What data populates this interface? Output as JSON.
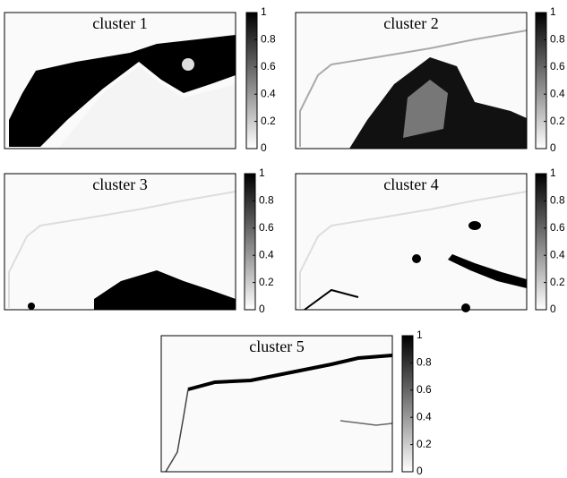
{
  "chart_data": [
    {
      "type": "heatmap",
      "title": "cluster 1",
      "clim": [
        0,
        1
      ],
      "cticks": [
        0,
        0.2,
        0.4,
        0.6,
        0.8,
        1
      ]
    },
    {
      "type": "heatmap",
      "title": "cluster 2",
      "clim": [
        0,
        1
      ],
      "cticks": [
        0,
        0.2,
        0.4,
        0.6,
        0.8,
        1
      ]
    },
    {
      "type": "heatmap",
      "title": "cluster 3",
      "clim": [
        0,
        1
      ],
      "cticks": [
        0,
        0.2,
        0.4,
        0.6,
        0.8,
        1
      ]
    },
    {
      "type": "heatmap",
      "title": "cluster 4",
      "clim": [
        0,
        1
      ],
      "cticks": [
        0,
        0.2,
        0.4,
        0.6,
        0.8,
        1
      ]
    },
    {
      "type": "heatmap",
      "title": "cluster 5",
      "clim": [
        0,
        1
      ],
      "cticks": [
        0,
        0.2,
        0.4,
        0.6,
        0.8,
        1
      ]
    }
  ]
}
